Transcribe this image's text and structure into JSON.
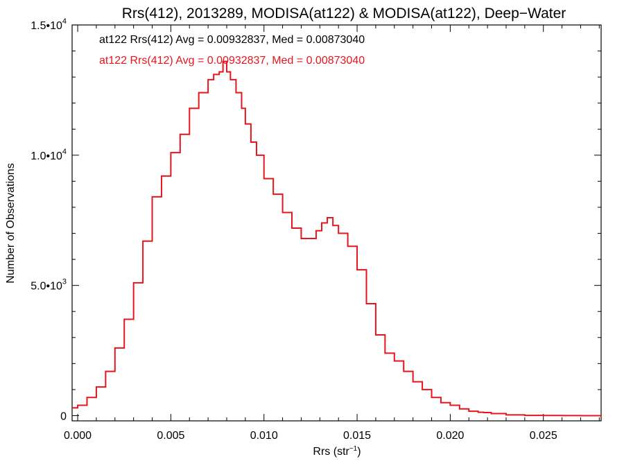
{
  "chart_data": {
    "type": "line",
    "title": "Rrs(412), 2013289, MODISA(at122) & MODISA(at122), Deep−Water",
    "xlabel_main": "Rrs (str",
    "xlabel_sup": "−1",
    "xlabel_end": ")",
    "ylabel": "Number of Observations",
    "xlim": [
      -0.0003,
      0.0281
    ],
    "ylim": [
      -200,
      15000
    ],
    "x_ticks": [
      {
        "value": 0.0,
        "label": "0.000"
      },
      {
        "value": 0.005,
        "label": "0.005"
      },
      {
        "value": 0.01,
        "label": "0.010"
      },
      {
        "value": 0.015,
        "label": "0.015"
      },
      {
        "value": 0.02,
        "label": "0.020"
      },
      {
        "value": 0.025,
        "label": "0.025"
      }
    ],
    "y_ticks": [
      {
        "value": 0,
        "mantissa": "0",
        "exp": ""
      },
      {
        "value": 5000,
        "mantissa": "5.0•10",
        "exp": "3"
      },
      {
        "value": 10000,
        "mantissa": "1.0•10",
        "exp": "4"
      },
      {
        "value": 15000,
        "mantissa": "1.5•10",
        "exp": "4"
      }
    ],
    "annotations": [
      {
        "text": "at122 Rrs(412) Avg = 0.00932837, Med = 0.00873040",
        "color": "#000000"
      },
      {
        "text": "at122 Rrs(412) Avg = 0.00932837, Med = 0.00873040",
        "color": "#e8141c"
      }
    ],
    "series": [
      {
        "color": "#e8141c",
        "x": [
          -0.0003,
          0.0,
          0.0005,
          0.001,
          0.0015,
          0.002,
          0.0025,
          0.003,
          0.0035,
          0.004,
          0.0045,
          0.005,
          0.0055,
          0.006,
          0.0065,
          0.007,
          0.0073,
          0.0076,
          0.0078,
          0.008,
          0.0082,
          0.0085,
          0.0088,
          0.009,
          0.0093,
          0.0096,
          0.01,
          0.0105,
          0.011,
          0.0115,
          0.012,
          0.0125,
          0.0128,
          0.0131,
          0.0134,
          0.0137,
          0.014,
          0.0145,
          0.015,
          0.0155,
          0.016,
          0.0165,
          0.017,
          0.0175,
          0.018,
          0.0185,
          0.019,
          0.0195,
          0.02,
          0.0205,
          0.021,
          0.0215,
          0.0218,
          0.0222,
          0.023,
          0.024,
          0.025,
          0.026,
          0.027,
          0.0281
        ],
        "y": [
          300,
          400,
          700,
          1100,
          1700,
          2600,
          3700,
          5100,
          6700,
          8400,
          9200,
          10100,
          10800,
          11800,
          12400,
          12900,
          13100,
          13200,
          13600,
          13200,
          12900,
          12400,
          11800,
          11200,
          10500,
          10000,
          9100,
          8500,
          7800,
          7200,
          6800,
          6800,
          7100,
          7400,
          7600,
          7300,
          7000,
          6500,
          5600,
          4300,
          3100,
          2400,
          2100,
          1700,
          1300,
          1000,
          700,
          500,
          400,
          260,
          170,
          130,
          120,
          80,
          30,
          10,
          5,
          3,
          1,
          0
        ]
      }
    ]
  }
}
